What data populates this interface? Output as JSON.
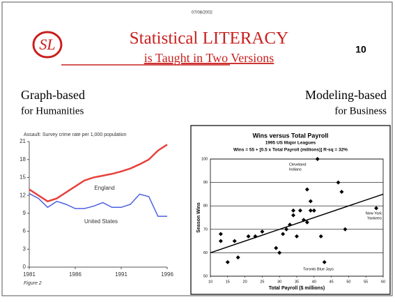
{
  "slide": {
    "logo": "SL",
    "date": "07/08/2002",
    "title": "Statistical LITERACY",
    "subtitle": "is Taught in Two Versions",
    "page_number": 10,
    "left": {
      "heading": "Graph-based",
      "subheading": "for Humanities"
    },
    "right": {
      "heading": "Modeling-based",
      "subheading": "for Business"
    }
  },
  "chart_data": [
    {
      "type": "line",
      "title": "Assault: Survey crime rate per 1,000 population",
      "caption": "Figure 2",
      "x": [
        1981,
        1982,
        1983,
        1984,
        1985,
        1986,
        1987,
        1988,
        1989,
        1990,
        1991,
        1992,
        1993,
        1994,
        1995,
        1996
      ],
      "series": [
        {
          "name": "England",
          "color": "#e8403c",
          "values": [
            13,
            12,
            11,
            11.5,
            12.5,
            13.5,
            14.5,
            15,
            15.3,
            15.6,
            16,
            16.5,
            17.2,
            18,
            19.5,
            20.5
          ]
        },
        {
          "name": "United States",
          "color": "#4a5fe0",
          "values": [
            12.3,
            11.5,
            10,
            11,
            10.5,
            9.8,
            9.8,
            10.2,
            10.8,
            10,
            10,
            10.5,
            12.2,
            11.8,
            8.5,
            8.5
          ]
        }
      ],
      "xlim": [
        1981,
        1996
      ],
      "xticks": [
        1981,
        1986,
        1991,
        1996
      ],
      "ylim": [
        0,
        21
      ],
      "yticks": [
        0,
        3,
        6,
        9,
        12,
        15,
        18,
        21
      ],
      "grid": false
    },
    {
      "type": "scatter",
      "title": "Wins versus Total Payroll",
      "subtitle": "1995 US Major Leagues",
      "equation": "Wins = 55 + [0.5 x Total Payroll (millions)]   R-sq = 32%",
      "x_label": "Total Payroll ($ millions)",
      "y_label": "Season Wins",
      "color": "#000000",
      "x": [
        13,
        13,
        15,
        17,
        18,
        21,
        23,
        25,
        29,
        30,
        31,
        32,
        33,
        34,
        34,
        35,
        36,
        37,
        38,
        38,
        39,
        39,
        40,
        41,
        42,
        43,
        47,
        48,
        49,
        58
      ],
      "values": [
        68,
        65,
        56,
        65,
        58,
        67,
        67,
        69,
        62,
        60,
        68,
        70,
        72,
        76,
        78,
        67,
        78,
        74,
        73,
        87,
        78,
        82,
        78,
        100,
        67,
        56,
        90,
        86,
        70,
        79
      ],
      "trendline": {
        "x": [
          10,
          60
        ],
        "values": [
          60,
          85
        ]
      },
      "annotations": [
        [
          "Cleveland",
          "Indians"
        ],
        [
          "New York",
          "Yankees"
        ],
        [
          "Toronto Blue Jays"
        ]
      ],
      "xlim": [
        10,
        60
      ],
      "xticks": [
        10,
        15,
        20,
        25,
        30,
        35,
        40,
        45,
        50,
        55,
        60
      ],
      "ylim": [
        50,
        100
      ],
      "yticks": [
        50,
        60,
        70,
        80,
        90,
        100
      ],
      "grid": true
    }
  ]
}
